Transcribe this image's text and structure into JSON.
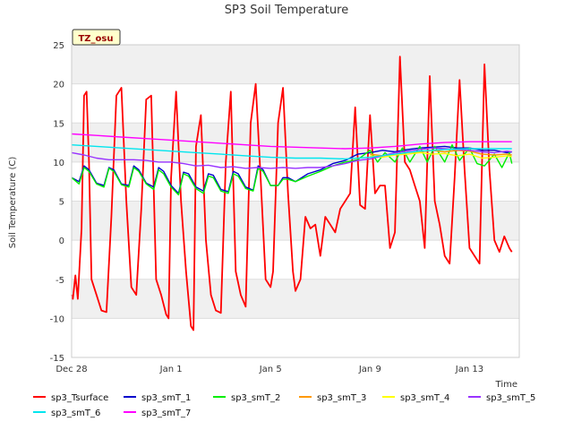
{
  "chart_data": {
    "type": "line",
    "title": "SP3 Soil Temperature",
    "xlabel": "Time",
    "ylabel": "Soil Temperature (C)",
    "badge": "TZ_osu",
    "xlim": [
      0,
      18
    ],
    "ylim": [
      -15,
      25
    ],
    "x_ticks": [
      {
        "label": "Dec 28",
        "x": 0
      },
      {
        "label": "Jan 1",
        "x": 4
      },
      {
        "label": "Jan 5",
        "x": 8
      },
      {
        "label": "Jan 9",
        "x": 12
      },
      {
        "label": "Jan 13",
        "x": 16
      }
    ],
    "y_ticks": [
      -15,
      -10,
      -5,
      0,
      5,
      10,
      15,
      20,
      25
    ],
    "grid": true,
    "legend_position": "bottom",
    "series": [
      {
        "name": "sp3_Tsurface",
        "color": "#ff0000",
        "x": [
          0,
          0.05,
          0.15,
          0.25,
          0.4,
          0.5,
          0.6,
          0.7,
          0.8,
          1.0,
          1.2,
          1.4,
          1.6,
          1.8,
          2.0,
          2.2,
          2.4,
          2.5,
          2.6,
          2.8,
          3.0,
          3.2,
          3.4,
          3.6,
          3.8,
          3.9,
          4.0,
          4.2,
          4.4,
          4.6,
          4.8,
          4.9,
          5.0,
          5.2,
          5.4,
          5.6,
          5.8,
          6.0,
          6.2,
          6.4,
          6.6,
          6.8,
          7.0,
          7.2,
          7.4,
          7.6,
          7.8,
          8.0,
          8.1,
          8.3,
          8.5,
          8.7,
          8.9,
          9.0,
          9.2,
          9.4,
          9.6,
          9.8,
          10.0,
          10.2,
          10.4,
          10.6,
          10.8,
          11.0,
          11.2,
          11.4,
          11.6,
          11.8,
          12.0,
          12.2,
          12.4,
          12.6,
          12.8,
          13.0,
          13.2,
          13.4,
          13.6,
          13.8,
          14.0,
          14.2,
          14.4,
          14.6,
          14.8,
          15.0,
          15.2,
          15.4,
          15.6,
          15.8,
          16.0,
          16.2,
          16.4,
          16.6,
          16.8,
          17.0,
          17.2,
          17.4,
          17.6,
          17.7
        ],
        "y": [
          -7,
          -7.5,
          -4.5,
          -7.5,
          1.5,
          18.5,
          19,
          10,
          -5,
          -7,
          -9,
          -9.2,
          3,
          18.5,
          19.5,
          5,
          -6,
          -6.5,
          -7,
          4,
          18,
          18.5,
          -5,
          -7,
          -9.5,
          -10,
          8,
          19,
          5,
          -4,
          -11,
          -11.5,
          12,
          16,
          0,
          -7,
          -9,
          -9.3,
          10,
          19,
          -4,
          -7,
          -8.5,
          15,
          20,
          8,
          -5,
          -6,
          -4,
          15,
          19.5,
          6,
          -4,
          -6.5,
          -5,
          3,
          1.5,
          2,
          -2,
          3,
          2,
          1,
          4,
          5,
          6,
          17,
          4.5,
          4,
          16,
          6,
          7,
          7,
          -1,
          1,
          23.5,
          10,
          9,
          7,
          5,
          -1,
          21,
          5,
          2,
          -2,
          -3,
          8,
          20.5,
          9,
          -1,
          -2,
          -3,
          22.5,
          9,
          0,
          -1.5,
          0.5,
          -1,
          -1.5
        ]
      },
      {
        "name": "sp3_smT_1",
        "color": "#0000cc",
        "x": [
          0,
          0.3,
          0.5,
          0.7,
          1.0,
          1.3,
          1.5,
          1.7,
          2.0,
          2.3,
          2.5,
          2.7,
          3.0,
          3.3,
          3.5,
          3.7,
          4.0,
          4.3,
          4.5,
          4.7,
          5.0,
          5.3,
          5.5,
          5.7,
          6.0,
          6.3,
          6.5,
          6.7,
          7.0,
          7.3,
          7.5,
          7.7,
          8.0,
          8.3,
          8.5,
          8.7,
          9.0,
          9.5,
          10.0,
          10.5,
          11.0,
          11.5,
          12.0,
          12.5,
          13.0,
          13.5,
          14.0,
          14.5,
          15.0,
          15.5,
          16.0,
          16.5,
          17.0,
          17.5,
          17.7
        ],
        "y": [
          8,
          7.5,
          9.5,
          9,
          7.3,
          7,
          9.3,
          9,
          7.2,
          7,
          9.5,
          9,
          7.3,
          6.8,
          9.3,
          8.8,
          7,
          6,
          8.7,
          8.5,
          6.8,
          6.3,
          8.5,
          8.3,
          6.5,
          6.2,
          8.8,
          8.5,
          6.8,
          6.4,
          9.5,
          9,
          7,
          7,
          8,
          8,
          7.5,
          8.5,
          9,
          9.8,
          10.2,
          11,
          11.2,
          11.5,
          11.3,
          11.6,
          11.8,
          11.9,
          12.0,
          11.8,
          11.8,
          11.5,
          11.5,
          11.2,
          11.3
        ]
      },
      {
        "name": "sp3_smT_2",
        "color": "#00ee00",
        "x": [
          0,
          0.3,
          0.5,
          0.7,
          1.0,
          1.3,
          1.5,
          1.7,
          2.0,
          2.3,
          2.5,
          2.7,
          3.0,
          3.3,
          3.5,
          3.7,
          4.0,
          4.3,
          4.5,
          4.7,
          5.0,
          5.3,
          5.5,
          5.7,
          6.0,
          6.3,
          6.5,
          6.7,
          7.0,
          7.3,
          7.5,
          7.7,
          8.0,
          8.3,
          8.5,
          8.7,
          9.0,
          9.5,
          10.0,
          10.5,
          11.0,
          11.5,
          12.0,
          12.3,
          12.6,
          13.0,
          13.3,
          13.6,
          14.0,
          14.3,
          14.6,
          15.0,
          15.3,
          15.6,
          16.0,
          16.3,
          16.6,
          17.0,
          17.3,
          17.6,
          17.7
        ],
        "y": [
          8,
          7.2,
          9.3,
          8.8,
          7.2,
          6.8,
          9.2,
          8.8,
          7.1,
          6.8,
          9.3,
          8.8,
          7.2,
          6.5,
          9.0,
          8.5,
          6.8,
          5.8,
          8.5,
          8.2,
          6.6,
          6.0,
          8.2,
          8.0,
          6.3,
          6.0,
          8.5,
          8.2,
          6.6,
          6.3,
          9.2,
          8.8,
          7.0,
          7.0,
          7.8,
          7.8,
          7.5,
          8.2,
          8.8,
          9.5,
          10.0,
          10.3,
          11.5,
          10.0,
          11.2,
          10.0,
          11.8,
          10.0,
          12.0,
          10.0,
          12.0,
          10.0,
          12.2,
          10.2,
          11.8,
          9.8,
          9.5,
          11.0,
          9.3,
          11.2,
          9.8
        ]
      },
      {
        "name": "sp3_smT_3",
        "color": "#ff9900",
        "x": [
          12.0,
          12.5,
          13.0,
          13.5,
          14.0,
          14.5,
          15.0,
          15.5,
          16.0,
          16.5,
          17.0,
          17.5,
          17.7
        ],
        "y": [
          11.0,
          10.8,
          11.0,
          11.2,
          11.3,
          11.5,
          11.3,
          11.5,
          11.4,
          11.0,
          10.9,
          11.0,
          10.9
        ]
      },
      {
        "name": "sp3_smT_4",
        "color": "#ffff00",
        "x": [
          12.0,
          12.5,
          13.0,
          13.5,
          14.0,
          14.5,
          15.0,
          15.5,
          16.0,
          16.5,
          17.0,
          17.5,
          17.7
        ],
        "y": [
          10.8,
          10.6,
          10.9,
          11.0,
          11.2,
          11.0,
          11.1,
          10.8,
          11.0,
          10.5,
          10.6,
          10.8,
          10.7
        ]
      },
      {
        "name": "sp3_smT_5",
        "color": "#9933ff",
        "x": [
          0,
          0.5,
          1.0,
          1.5,
          2.0,
          2.5,
          3.0,
          3.5,
          4.0,
          4.5,
          5.0,
          5.5,
          6.0,
          6.5,
          7.0,
          7.5,
          8.0,
          8.5,
          9.0,
          9.5,
          10.0,
          10.5,
          11.0,
          11.5,
          12.0,
          12.5,
          13.0,
          13.5,
          14.0,
          14.5,
          15.0,
          15.5,
          16.0,
          16.5,
          17.0,
          17.5,
          17.7
        ],
        "y": [
          11.2,
          10.9,
          10.5,
          10.3,
          10.3,
          10.3,
          10.2,
          10.0,
          10.0,
          9.8,
          9.5,
          9.6,
          9.3,
          9.4,
          9.2,
          9.3,
          9.2,
          9.3,
          9.2,
          9.3,
          9.3,
          9.5,
          9.8,
          10.2,
          10.4,
          10.8,
          11.2,
          11.4,
          11.6,
          11.8,
          11.7,
          11.6,
          11.5,
          11.3,
          11.2,
          11.4,
          11.3
        ]
      },
      {
        "name": "sp3_smT_6",
        "color": "#00e5ee",
        "x": [
          0,
          1,
          2,
          3,
          4,
          5,
          6,
          7,
          8,
          9,
          10,
          11,
          12,
          13,
          14,
          15,
          16,
          17,
          17.7
        ],
        "y": [
          12.2,
          12.0,
          11.8,
          11.6,
          11.4,
          11.2,
          11.0,
          10.8,
          10.6,
          10.5,
          10.5,
          10.4,
          10.6,
          11.0,
          11.4,
          11.6,
          11.7,
          11.7,
          11.7
        ]
      },
      {
        "name": "sp3_smT_7",
        "color": "#ff00ff",
        "x": [
          0,
          1,
          2,
          3,
          4,
          5,
          6,
          7,
          8,
          9,
          10,
          11,
          12,
          13,
          14,
          15,
          16,
          17,
          17.7
        ],
        "y": [
          13.6,
          13.4,
          13.2,
          13.0,
          12.8,
          12.6,
          12.4,
          12.2,
          12.0,
          11.9,
          11.8,
          11.7,
          11.8,
          12.0,
          12.3,
          12.5,
          12.6,
          12.6,
          12.6
        ]
      }
    ]
  }
}
